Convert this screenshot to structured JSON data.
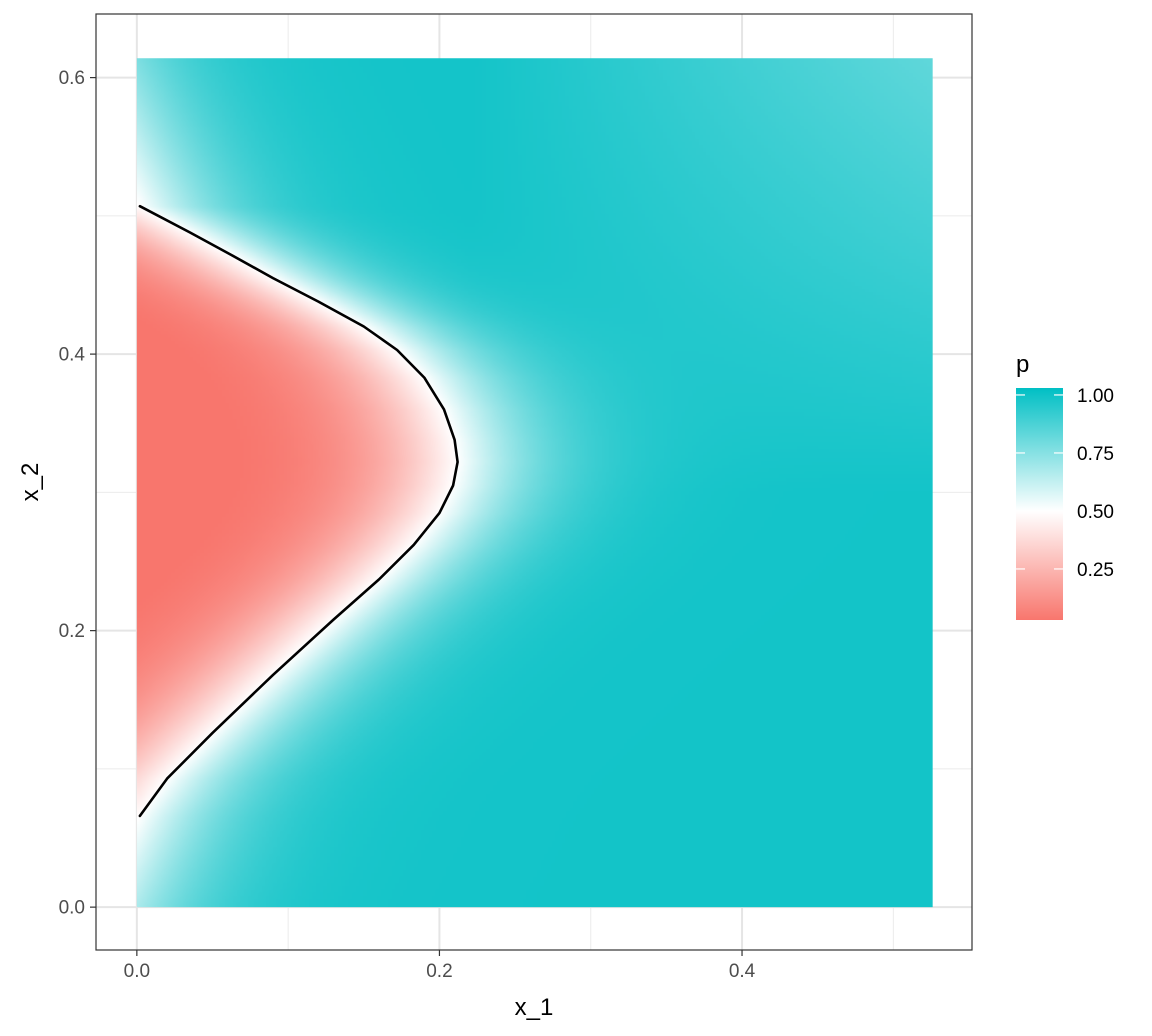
{
  "chart_data": {
    "type": "heatmap",
    "title": "",
    "xlabel": "x_1",
    "ylabel": "x_2",
    "xlim": [
      -0.027,
      0.552
    ],
    "ylim": [
      -0.031,
      0.646
    ],
    "x_range": [
      0.0,
      0.526
    ],
    "y_range": [
      0.0,
      0.614
    ],
    "x_ticks": [
      0.0,
      0.2,
      0.4
    ],
    "x_tick_labels": [
      "0.0",
      "0.2",
      "0.4"
    ],
    "y_ticks": [
      0.0,
      0.2,
      0.4,
      0.6
    ],
    "y_tick_labels": [
      "0.0",
      "0.2",
      "0.4",
      "0.6"
    ],
    "grid": true,
    "fill_variable": "p",
    "color_scale": {
      "low": "#F8766D",
      "mid": "#FFFFFF",
      "high": "#00BFC4",
      "midpoint": 0.5,
      "limits": [
        0.03,
        1.03
      ]
    },
    "legend": {
      "title": "p",
      "placement": "right",
      "breaks": [
        1.0,
        0.75,
        0.5,
        0.25
      ],
      "labels": [
        "1.00",
        "0.75",
        "0.50",
        "0.25"
      ]
    },
    "contour": {
      "level": 0.5,
      "color": "#000000",
      "points": [
        [
          0.002,
          0.507
        ],
        [
          0.035,
          0.488
        ],
        [
          0.062,
          0.472
        ],
        [
          0.09,
          0.455
        ],
        [
          0.12,
          0.438
        ],
        [
          0.15,
          0.42
        ],
        [
          0.172,
          0.403
        ],
        [
          0.19,
          0.383
        ],
        [
          0.203,
          0.36
        ],
        [
          0.21,
          0.338
        ],
        [
          0.212,
          0.322
        ],
        [
          0.209,
          0.305
        ],
        [
          0.2,
          0.285
        ],
        [
          0.183,
          0.262
        ],
        [
          0.16,
          0.237
        ],
        [
          0.13,
          0.208
        ],
        [
          0.09,
          0.168
        ],
        [
          0.05,
          0.126
        ],
        [
          0.02,
          0.093
        ],
        [
          0.002,
          0.066
        ]
      ]
    }
  }
}
